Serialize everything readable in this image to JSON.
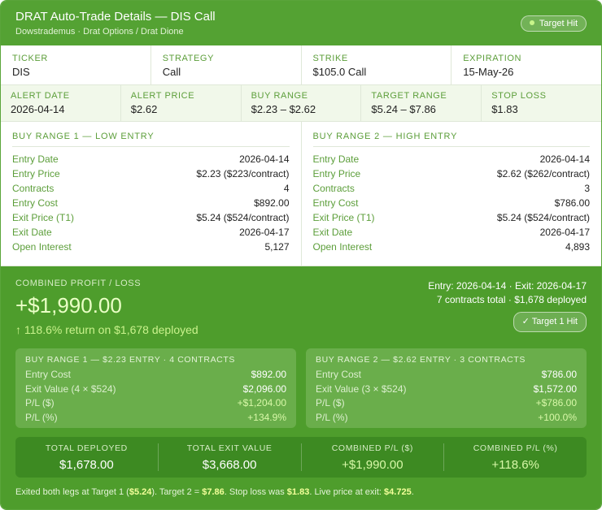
{
  "header": {
    "title": "DRAT Auto-Trade Details — DIS Call",
    "subtitle": "Dowstrademus · Drat Options / Drat Dione",
    "badge": "Target Hit"
  },
  "summary": [
    {
      "label": "TICKER",
      "value": "DIS"
    },
    {
      "label": "STRATEGY",
      "value": "Call"
    },
    {
      "label": "STRIKE",
      "value": "$105.0 Call"
    },
    {
      "label": "EXPIRATION",
      "value": "15-May-26"
    }
  ],
  "alert": [
    {
      "label": "ALERT DATE",
      "value": "2026-04-14"
    },
    {
      "label": "ALERT PRICE",
      "value": "$2.62"
    },
    {
      "label": "BUY RANGE",
      "value": "$2.23 – $2.62"
    },
    {
      "label": "TARGET RANGE",
      "value": "$5.24 – $7.86"
    },
    {
      "label": "STOP LOSS",
      "value": "$1.83"
    }
  ],
  "ranges": [
    {
      "title": "BUY RANGE 1 — LOW ENTRY",
      "rows": [
        [
          "Entry Date",
          "2026-04-14"
        ],
        [
          "Entry Price",
          "$2.23 ($223/contract)"
        ],
        [
          "Contracts",
          "4"
        ],
        [
          "Entry Cost",
          "$892.00"
        ],
        [
          "Exit Price (T1)",
          "$5.24 ($524/contract)"
        ],
        [
          "Exit Date",
          "2026-04-17"
        ],
        [
          "Open Interest",
          "5,127"
        ]
      ]
    },
    {
      "title": "BUY RANGE 2 — HIGH ENTRY",
      "rows": [
        [
          "Entry Date",
          "2026-04-14"
        ],
        [
          "Entry Price",
          "$2.62 ($262/contract)"
        ],
        [
          "Contracts",
          "3"
        ],
        [
          "Entry Cost",
          "$786.00"
        ],
        [
          "Exit Price (T1)",
          "$5.24 ($524/contract)"
        ],
        [
          "Exit Date",
          "2026-04-17"
        ],
        [
          "Open Interest",
          "4,893"
        ]
      ]
    }
  ],
  "combined": {
    "label": "COMBINED PROFIT / LOSS",
    "value": "+$1,990.00",
    "return": "↑ 118.6% return on $1,678 deployed",
    "dates": "Entry: 2026-04-14 · Exit: 2026-04-17",
    "contracts": "7 contracts total · $1,678 deployed",
    "badge": "✓ Target 1 Hit"
  },
  "legs": [
    {
      "title": "BUY RANGE 1 — $2.23 ENTRY · 4 CONTRACTS",
      "rows": [
        [
          "Entry Cost",
          "$892.00"
        ],
        [
          "Exit Value (4 × $524)",
          "$2,096.00"
        ],
        [
          "P/L ($)",
          "+$1,204.00"
        ],
        [
          "P/L (%)",
          "+134.9%"
        ]
      ]
    },
    {
      "title": "BUY RANGE 2 — $2.62 ENTRY · 3 CONTRACTS",
      "rows": [
        [
          "Entry Cost",
          "$786.00"
        ],
        [
          "Exit Value (3 × $524)",
          "$1,572.00"
        ],
        [
          "P/L ($)",
          "+$786.00"
        ],
        [
          "P/L (%)",
          "+100.0%"
        ]
      ]
    }
  ],
  "totals": [
    {
      "label": "TOTAL DEPLOYED",
      "value": "$1,678.00"
    },
    {
      "label": "TOTAL EXIT VALUE",
      "value": "$3,668.00"
    },
    {
      "label": "COMBINED P/L ($)",
      "value": "+$1,990.00"
    },
    {
      "label": "COMBINED P/L (%)",
      "value": "+118.6%"
    }
  ],
  "footer": [
    "Exited both legs at Target 1 (",
    "$5.24",
    "). Target 2 = ",
    "$7.86",
    ". Stop loss was ",
    "$1.83",
    ". Live price at exit: ",
    "$4.725",
    "."
  ]
}
